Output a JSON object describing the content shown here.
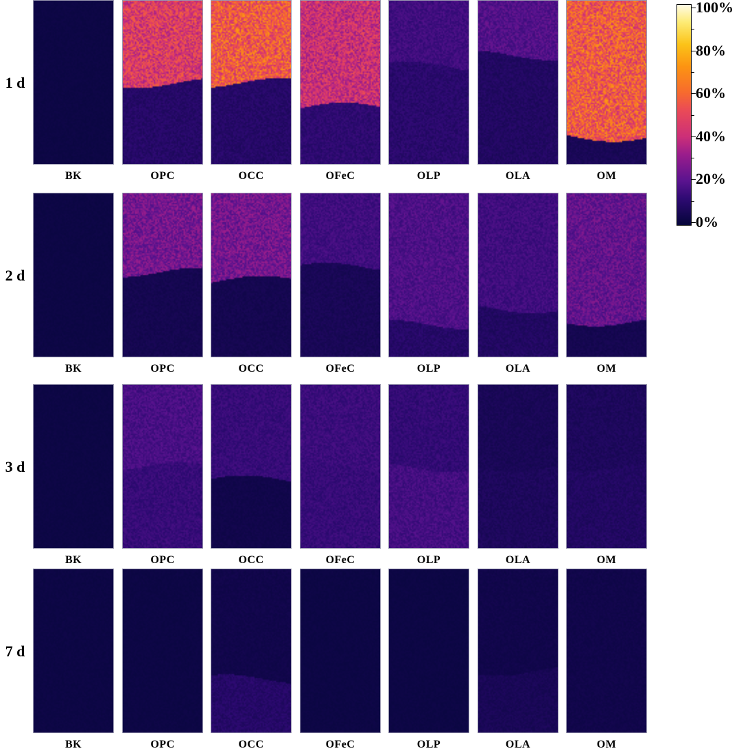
{
  "chart_data": {
    "type": "heatmap",
    "row_labels": [
      "1 d",
      "2 d",
      "3 d",
      "7 d"
    ],
    "column_labels": [
      "BK",
      "OPC",
      "OCC",
      "OFeC",
      "OLP",
      "OLA",
      "OM"
    ],
    "colorbar": {
      "range": [
        0,
        100
      ],
      "unit": "%",
      "tick_labels": [
        "100%",
        "80%",
        "60%",
        "40%",
        "20%",
        "0%"
      ],
      "colors": [
        "#05053a",
        "#2e0a73",
        "#5a138f",
        "#9a1d8c",
        "#cc2f78",
        "#ea4a57",
        "#f76a2e",
        "#fc9412",
        "#fbc318",
        "#fdeb74",
        "#fffbe6"
      ]
    },
    "panels": [
      {
        "day": "1 d",
        "sample": "BK",
        "upper_value": 2,
        "lower_value": 2,
        "boundary_fraction": 0.0
      },
      {
        "day": "1 d",
        "sample": "OPC",
        "upper_value": 45,
        "lower_value": 8,
        "boundary_fraction": 0.5
      },
      {
        "day": "1 d",
        "sample": "OCC",
        "upper_value": 55,
        "lower_value": 8,
        "boundary_fraction": 0.5
      },
      {
        "day": "1 d",
        "sample": "OFeC",
        "upper_value": 40,
        "lower_value": 10,
        "boundary_fraction": 0.65
      },
      {
        "day": "1 d",
        "sample": "OLP",
        "upper_value": 14,
        "lower_value": 9,
        "boundary_fraction": 0.4
      },
      {
        "day": "1 d",
        "sample": "OLA",
        "upper_value": 18,
        "lower_value": 7,
        "boundary_fraction": 0.33
      },
      {
        "day": "1 d",
        "sample": "OM",
        "upper_value": 55,
        "lower_value": 5,
        "boundary_fraction": 0.83
      },
      {
        "day": "2 d",
        "sample": "BK",
        "upper_value": 2,
        "lower_value": 2,
        "boundary_fraction": 0.0
      },
      {
        "day": "2 d",
        "sample": "OPC",
        "upper_value": 24,
        "lower_value": 4,
        "boundary_fraction": 0.48
      },
      {
        "day": "2 d",
        "sample": "OCC",
        "upper_value": 24,
        "lower_value": 4,
        "boundary_fraction": 0.53
      },
      {
        "day": "2 d",
        "sample": "OFeC",
        "upper_value": 14,
        "lower_value": 5,
        "boundary_fraction": 0.45
      },
      {
        "day": "2 d",
        "sample": "OLP",
        "upper_value": 17,
        "lower_value": 8,
        "boundary_fraction": 0.8
      },
      {
        "day": "2 d",
        "sample": "OLA",
        "upper_value": 14,
        "lower_value": 7,
        "boundary_fraction": 0.7
      },
      {
        "day": "2 d",
        "sample": "OM",
        "upper_value": 21,
        "lower_value": 4,
        "boundary_fraction": 0.78
      },
      {
        "day": "3 d",
        "sample": "BK",
        "upper_value": 2,
        "lower_value": 2,
        "boundary_fraction": 0.0
      },
      {
        "day": "3 d",
        "sample": "OPC",
        "upper_value": 16,
        "lower_value": 12,
        "boundary_fraction": 0.5
      },
      {
        "day": "3 d",
        "sample": "OCC",
        "upper_value": 12,
        "lower_value": 3,
        "boundary_fraction": 0.58
      },
      {
        "day": "3 d",
        "sample": "OFeC",
        "upper_value": 13,
        "lower_value": 12,
        "boundary_fraction": 0.5
      },
      {
        "day": "3 d",
        "sample": "OLP",
        "upper_value": 11,
        "lower_value": 15,
        "boundary_fraction": 0.5
      },
      {
        "day": "3 d",
        "sample": "OLA",
        "upper_value": 5,
        "lower_value": 6,
        "boundary_fraction": 0.5
      },
      {
        "day": "3 d",
        "sample": "OM",
        "upper_value": 6,
        "lower_value": 7,
        "boundary_fraction": 0.5
      },
      {
        "day": "7 d",
        "sample": "BK",
        "upper_value": 2,
        "lower_value": 2,
        "boundary_fraction": 0.0
      },
      {
        "day": "7 d",
        "sample": "OPC",
        "upper_value": 2,
        "lower_value": 2,
        "boundary_fraction": 0.0
      },
      {
        "day": "7 d",
        "sample": "OCC",
        "upper_value": 3,
        "lower_value": 8,
        "boundary_fraction": 0.67
      },
      {
        "day": "7 d",
        "sample": "OFeC",
        "upper_value": 2,
        "lower_value": 2,
        "boundary_fraction": 0.0
      },
      {
        "day": "7 d",
        "sample": "OLP",
        "upper_value": 2,
        "lower_value": 2,
        "boundary_fraction": 0.0
      },
      {
        "day": "7 d",
        "sample": "OLA",
        "upper_value": 3,
        "lower_value": 5,
        "boundary_fraction": 0.62
      },
      {
        "day": "7 d",
        "sample": "OM",
        "upper_value": 3,
        "lower_value": 3,
        "boundary_fraction": 0.0
      }
    ]
  }
}
